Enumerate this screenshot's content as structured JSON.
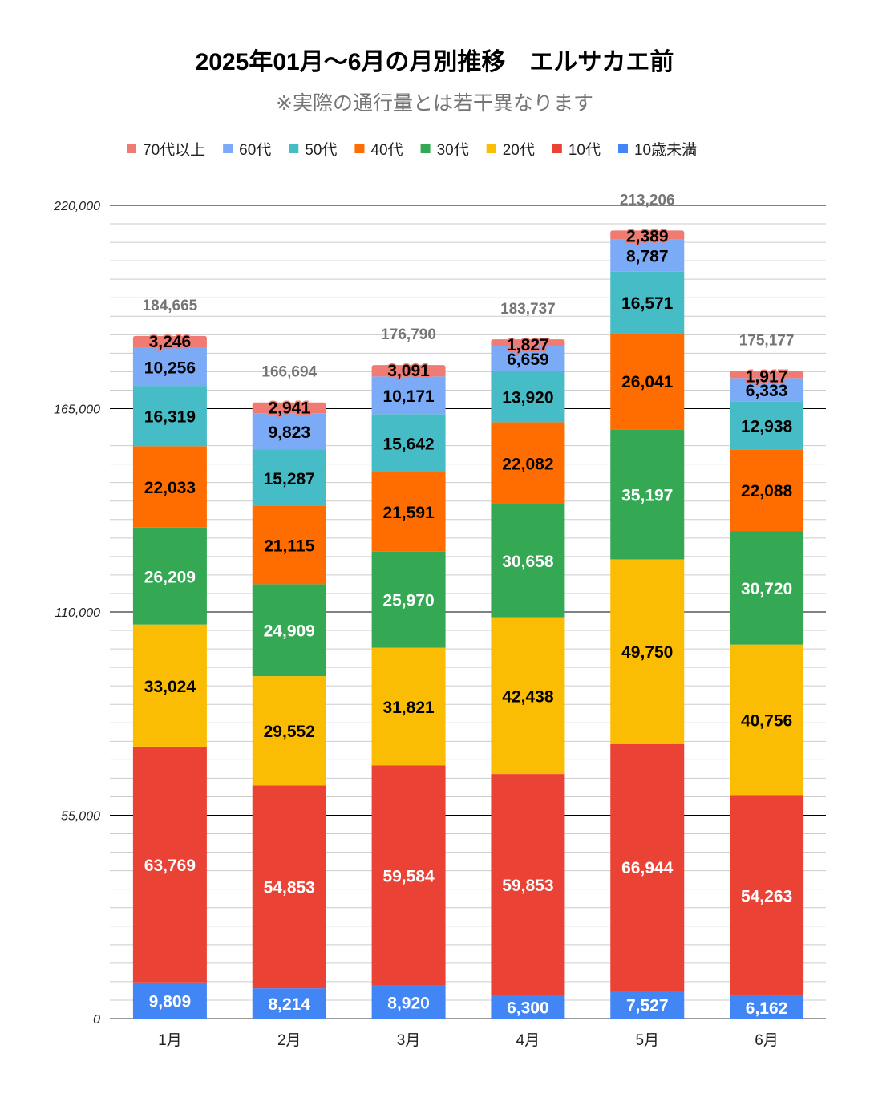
{
  "chart_data": {
    "type": "bar",
    "stacked": true,
    "title": "2025年01月～6月の月別推移　エルサカエ前",
    "subtitle": "※実際の通行量とは若干異なります",
    "xlabel": "",
    "ylabel": "",
    "ylim": [
      0,
      220000
    ],
    "yticks": [
      0,
      55000,
      110000,
      165000,
      220000
    ],
    "ytick_labels": [
      "0",
      "55,000",
      "110,000",
      "165,000",
      "220,000"
    ],
    "minor_grid_step": 5000,
    "grid": true,
    "legend_position": "top",
    "categories": [
      "1月",
      "2月",
      "3月",
      "4月",
      "5月",
      "6月"
    ],
    "series": [
      {
        "name": "10歳未満",
        "color": "#4285f4",
        "label_color": "#ffffff",
        "values": [
          9809,
          8214,
          8920,
          6300,
          7527,
          6162
        ]
      },
      {
        "name": "10代",
        "color": "#ea4335",
        "label_color": "#ffffff",
        "values": [
          63769,
          54853,
          59584,
          59853,
          66944,
          54263
        ]
      },
      {
        "name": "20代",
        "color": "#fbbc04",
        "label_color": "#000000",
        "values": [
          33024,
          29552,
          31821,
          42438,
          49750,
          40756
        ]
      },
      {
        "name": "30代",
        "color": "#34a853",
        "label_color": "#ffffff",
        "values": [
          26209,
          24909,
          25970,
          30658,
          35197,
          30720
        ]
      },
      {
        "name": "40代",
        "color": "#ff6d01",
        "label_color": "#000000",
        "values": [
          22033,
          21115,
          21591,
          22082,
          26041,
          22088
        ]
      },
      {
        "name": "50代",
        "color": "#46bdc6",
        "label_color": "#000000",
        "values": [
          16319,
          15287,
          15642,
          13920,
          16571,
          12938
        ]
      },
      {
        "name": "60代",
        "color": "#7baaf7",
        "label_color": "#000000",
        "values": [
          10256,
          9823,
          10171,
          6659,
          8787,
          6333
        ]
      },
      {
        "name": "70代以上",
        "color": "#f07b72",
        "label_color": "#000000",
        "values": [
          3246,
          2941,
          3091,
          1827,
          2389,
          1917
        ]
      }
    ],
    "legend_order": [
      "70代以上",
      "60代",
      "50代",
      "40代",
      "30代",
      "20代",
      "10代",
      "10歳未満"
    ],
    "totals": [
      184665,
      166694,
      176790,
      183737,
      213206,
      175177
    ],
    "total_labels": [
      "184,665",
      "166,694",
      "176,790",
      "183,737",
      "213,206",
      "175,177"
    ]
  }
}
